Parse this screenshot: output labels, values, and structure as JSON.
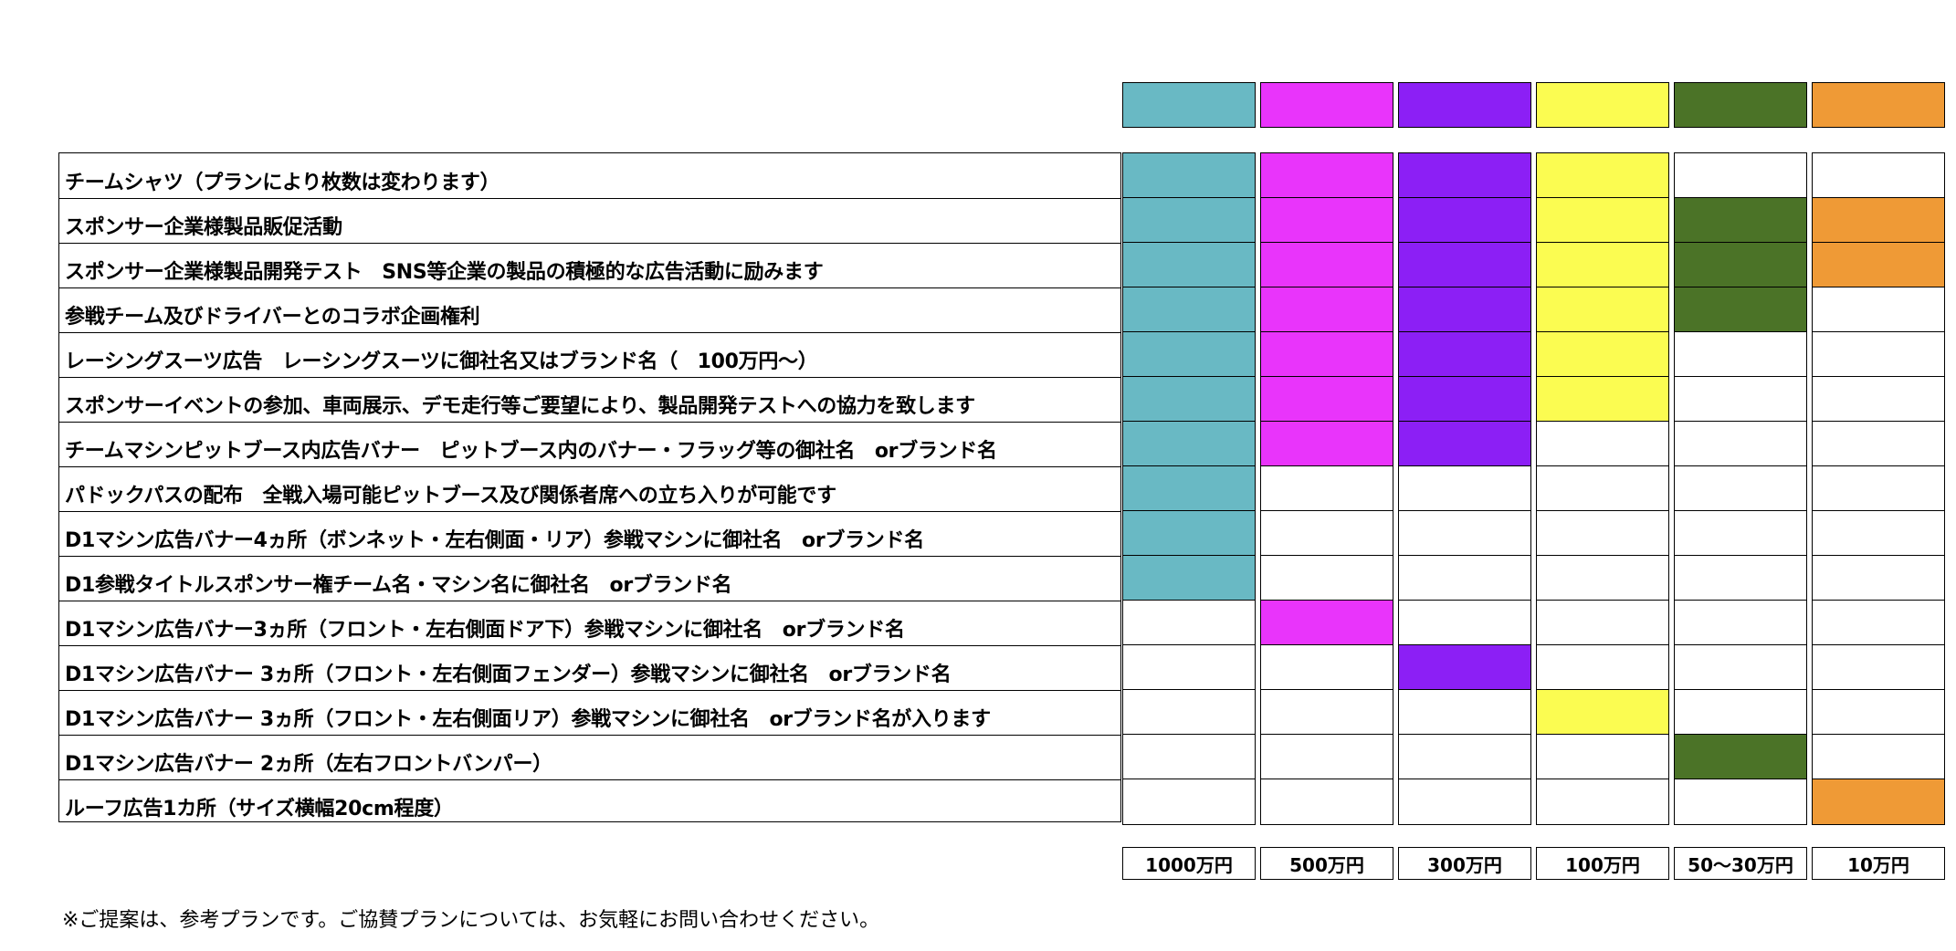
{
  "plans": [
    {
      "id": "plan-1",
      "color": "#69b9c4",
      "price": "1000万円"
    },
    {
      "id": "plan-2",
      "color": "#e934fb",
      "price": "500万円"
    },
    {
      "id": "plan-3",
      "color": "#8c1ff5",
      "price": "300万円"
    },
    {
      "id": "plan-4",
      "color": "#fbfc51",
      "price": "100万円"
    },
    {
      "id": "plan-5",
      "color": "#4b7327",
      "price": "50～30万円"
    },
    {
      "id": "plan-6",
      "color": "#ef9a36",
      "price": "10万円"
    }
  ],
  "rows": [
    {
      "label": "チームシャツ（プランにより枚数は変わります）",
      "included": [
        true,
        true,
        true,
        true,
        false,
        false
      ]
    },
    {
      "label": "スポンサー企業様製品販促活動",
      "included": [
        true,
        true,
        true,
        true,
        true,
        true
      ]
    },
    {
      "label": "スポンサー企業様製品開発テスト　SNS等企業の製品の積極的な広告活動に励みます",
      "included": [
        true,
        true,
        true,
        true,
        true,
        true
      ]
    },
    {
      "label": "参戦チーム及びドライバーとのコラボ企画権利",
      "included": [
        true,
        true,
        true,
        true,
        true,
        false
      ]
    },
    {
      "label": "レーシングスーツ広告　レーシングスーツに御社名又はブランド名（　100万円～）",
      "included": [
        true,
        true,
        true,
        true,
        false,
        false
      ]
    },
    {
      "label": "スポンサーイベントの参加、車両展示、デモ走行等ご要望により、製品開発テストへの協力を致します",
      "included": [
        true,
        true,
        true,
        true,
        false,
        false
      ]
    },
    {
      "label": "チームマシンピットブース内広告バナー　ピットブース内のバナー・フラッグ等の御社名　orブランド名",
      "included": [
        true,
        true,
        true,
        false,
        false,
        false
      ]
    },
    {
      "label": "パドックパスの配布　全戦入場可能ピットブース及び関係者席への立ち入りが可能です",
      "included": [
        true,
        false,
        false,
        false,
        false,
        false
      ]
    },
    {
      "label": "D1マシン広告バナー4ヵ所（ボンネット・左右側面・リア）参戦マシンに御社名　orブランド名",
      "included": [
        true,
        false,
        false,
        false,
        false,
        false
      ]
    },
    {
      "label": "D1参戦タイトルスポンサー権チーム名・マシン名に御社名　orブランド名",
      "included": [
        true,
        false,
        false,
        false,
        false,
        false
      ]
    },
    {
      "label": "D1マシン広告バナー3ヵ所（フロント・左右側面ドア下）参戦マシンに御社名　orブランド名",
      "included": [
        false,
        true,
        false,
        false,
        false,
        false
      ]
    },
    {
      "label": "D1マシン広告バナー 3ヵ所（フロント・左右側面フェンダー）参戦マシンに御社名　orブランド名",
      "included": [
        false,
        false,
        true,
        false,
        false,
        false
      ]
    },
    {
      "label": "D1マシン広告バナー 3ヵ所（フロント・左右側面リア）参戦マシンに御社名　orブランド名が入ります",
      "included": [
        false,
        false,
        false,
        true,
        false,
        false
      ]
    },
    {
      "label": "D1マシン広告バナー 2ヵ所（左右フロントバンパー）",
      "included": [
        false,
        false,
        false,
        false,
        true,
        false
      ]
    },
    {
      "label": "ルーフ広告1カ所（サイズ横幅20cm程度）",
      "included": [
        false,
        false,
        false,
        false,
        false,
        true
      ]
    }
  ],
  "note": "※ご提案は、参考プランです。ご協賛プランについては、お気軽にお問い合わせください。"
}
